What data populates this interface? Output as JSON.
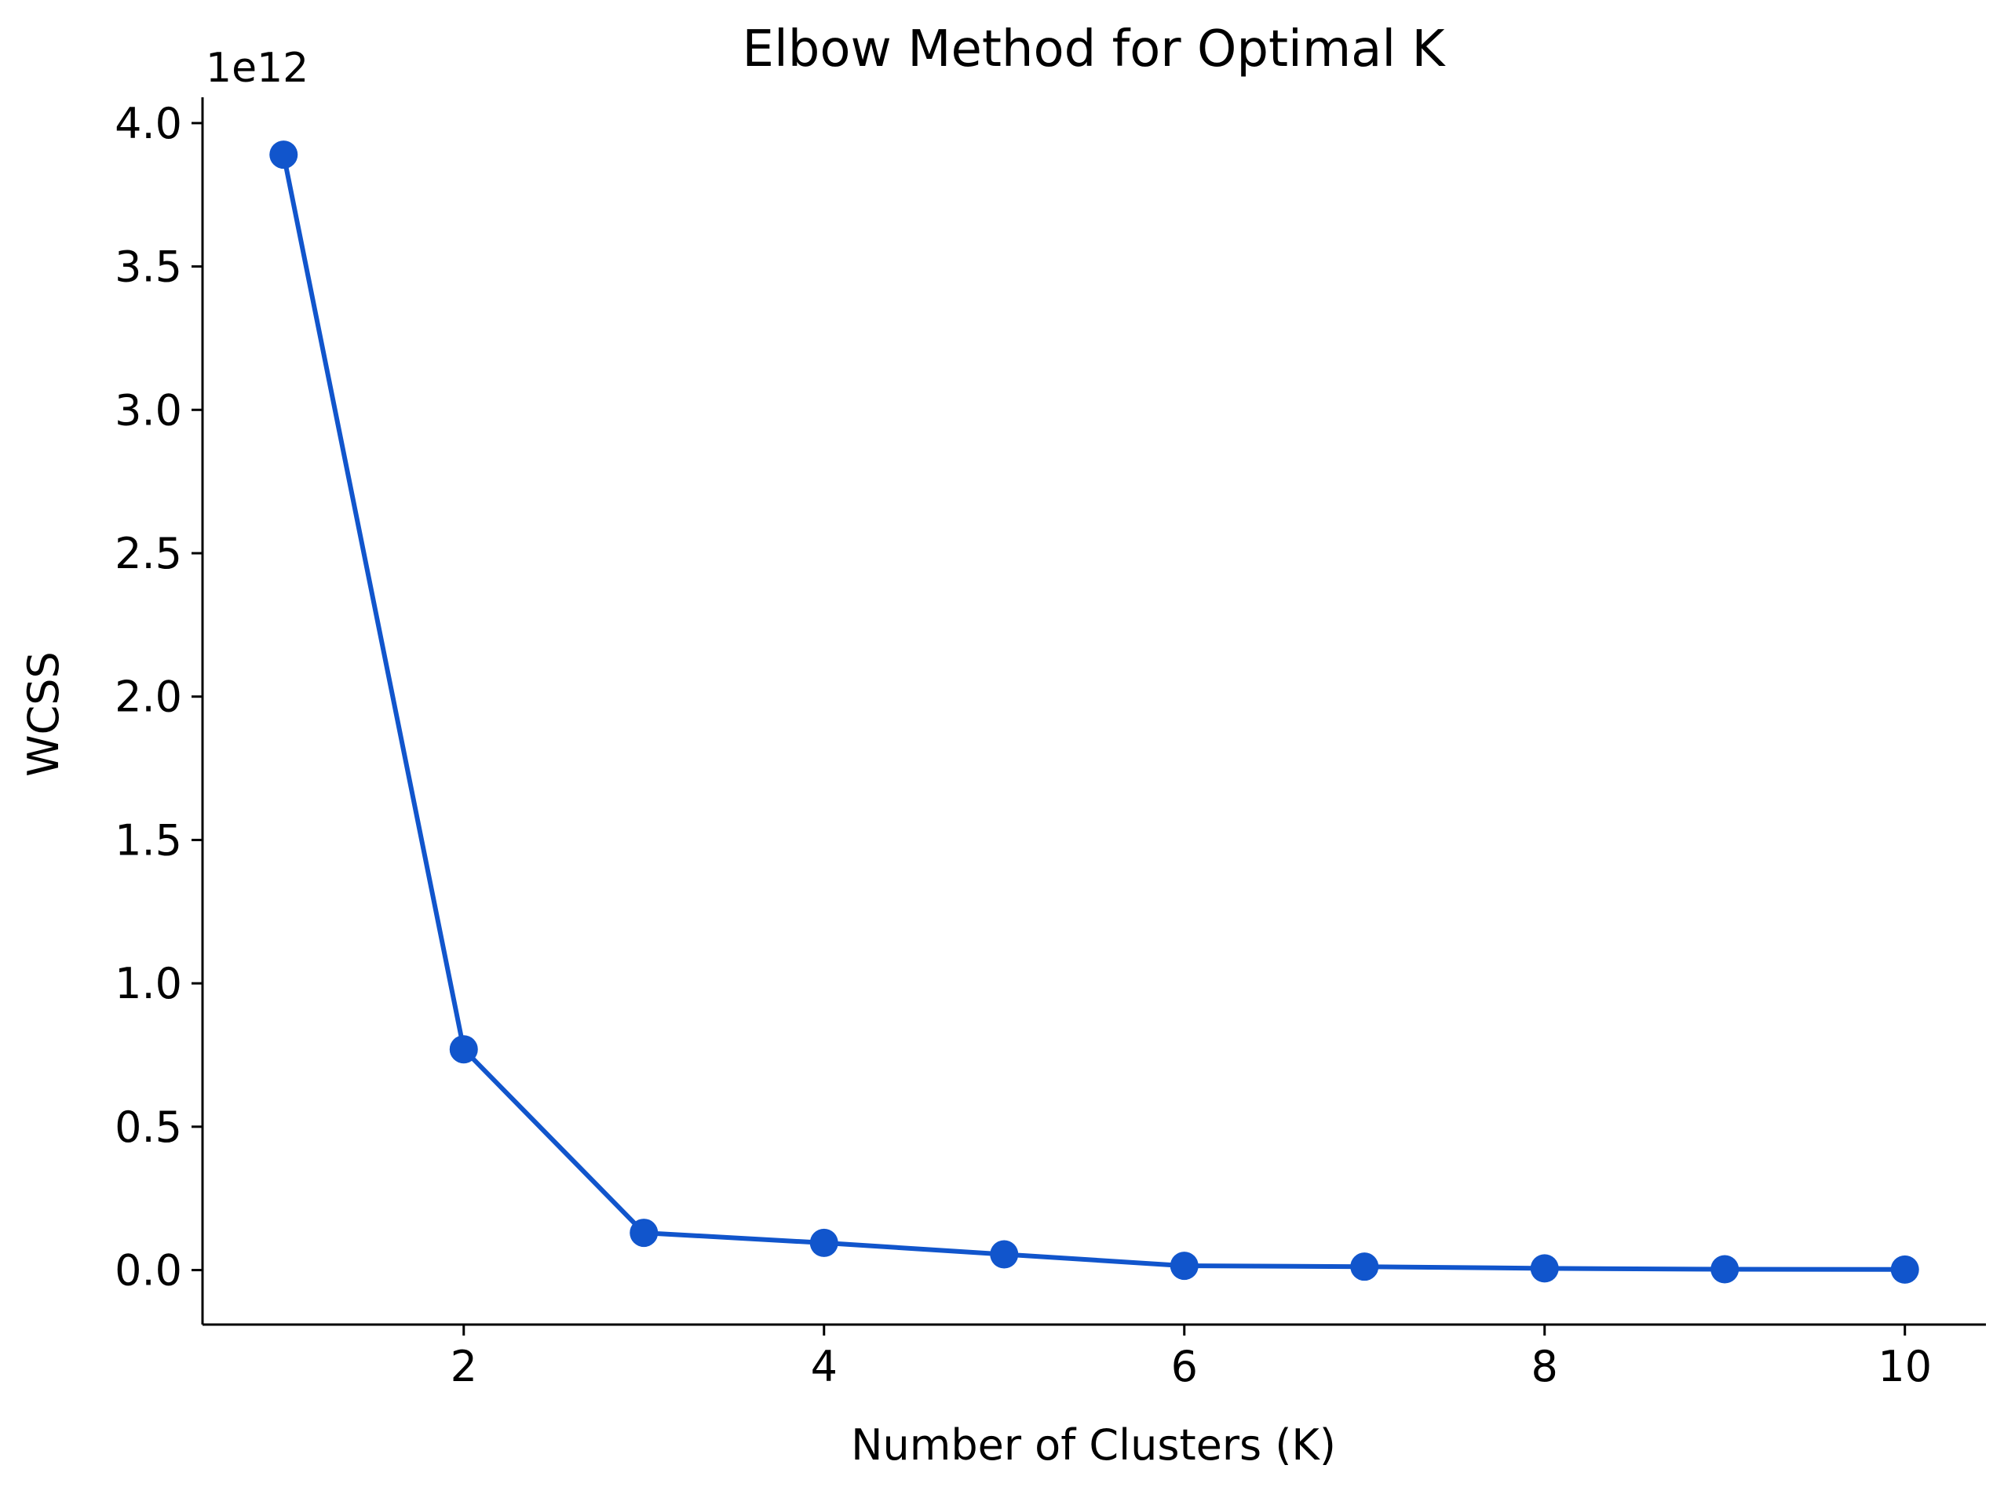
{
  "chart_data": {
    "type": "line",
    "title": "Elbow Method for Optimal K",
    "xlabel": "Number of Clusters (K)",
    "ylabel": "WCSS",
    "y_offset_label": "1e12",
    "x": [
      1,
      2,
      3,
      4,
      5,
      6,
      7,
      8,
      9,
      10
    ],
    "series": [
      {
        "values": [
          3.89,
          0.77,
          0.13,
          0.095,
          0.055,
          0.015,
          0.012,
          0.006,
          0.003,
          0.002
        ],
        "color": "#1155CC",
        "marker": "circle"
      }
    ],
    "xlim": [
      0.55,
      10.45
    ],
    "ylim": [
      -0.19,
      4.09
    ],
    "x_ticks": [
      2,
      4,
      6,
      8,
      10
    ],
    "x_tick_labels": [
      "2",
      "4",
      "6",
      "8",
      "10"
    ],
    "y_ticks": [
      0.0,
      0.5,
      1.0,
      1.5,
      2.0,
      2.5,
      3.0,
      3.5,
      4.0
    ],
    "y_tick_labels": [
      "0.0",
      "0.5",
      "1.0",
      "1.5",
      "2.0",
      "2.5",
      "3.0",
      "3.5",
      "4.0"
    ],
    "grid": false,
    "legend": "none"
  }
}
